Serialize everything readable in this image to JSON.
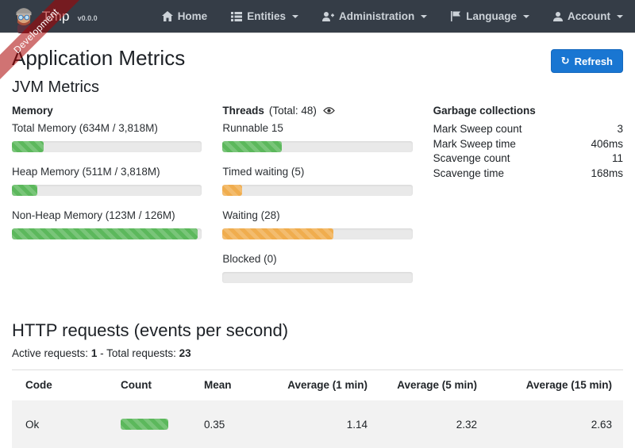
{
  "ribbon": {
    "label": "Development"
  },
  "navbar": {
    "brand": {
      "name": "Tmp",
      "version": "v0.0.0"
    },
    "items": [
      {
        "label": "Home"
      },
      {
        "label": "Entities"
      },
      {
        "label": "Administration"
      },
      {
        "label": "Language"
      },
      {
        "label": "Account"
      }
    ]
  },
  "page": {
    "title": "Application Metrics",
    "refresh_label": "Refresh",
    "refresh_icon": "↻",
    "jvm_title": "JVM Metrics"
  },
  "memory": {
    "title": "Memory",
    "bars": [
      {
        "label": "Total Memory (634M / 3,818M)",
        "percent": 16.6,
        "color": "#5cb85c"
      },
      {
        "label": "Heap Memory (511M / 3,818M)",
        "percent": 13.4,
        "color": "#5cb85c"
      },
      {
        "label": "Non-Heap Memory (123M / 126M)",
        "percent": 97.6,
        "color": "#5cb85c"
      }
    ]
  },
  "threads": {
    "title": "Threads",
    "total_label": "(Total: 48)",
    "bars": [
      {
        "label": "Runnable 15",
        "percent": 31.2,
        "color": "#5cb85c"
      },
      {
        "label": "Timed waiting (5)",
        "percent": 10.4,
        "color": "#f0ad4e"
      },
      {
        "label": "Waiting (28)",
        "percent": 58.3,
        "color": "#f0ad4e"
      },
      {
        "label": "Blocked (0)",
        "percent": 0,
        "color": "#f0ad4e"
      }
    ]
  },
  "gc": {
    "title": "Garbage collections",
    "rows": [
      {
        "label": "Mark Sweep count",
        "value": "3"
      },
      {
        "label": "Mark Sweep time",
        "value": "406ms"
      },
      {
        "label": "Scavenge count",
        "value": "11"
      },
      {
        "label": "Scavenge time",
        "value": "168ms"
      }
    ]
  },
  "http": {
    "title": "HTTP requests (events per second)",
    "active_label": "Active requests:",
    "active_value": "1",
    "total_label": "- Total requests:",
    "total_value": "23",
    "table": {
      "headers": [
        "Code",
        "Count",
        "Mean",
        "Average (1 min)",
        "Average (5 min)",
        "Average (15 min)"
      ],
      "rows": [
        {
          "code": "Ok",
          "count_percent": 100,
          "count_color": "#5cb85c",
          "mean": "0.35",
          "avg1": "1.14",
          "avg5": "2.32",
          "avg15": "2.63"
        }
      ]
    }
  },
  "colors": {
    "navbar_bg": "#353d47",
    "primary": "#1976d2",
    "success": "#5cb85c",
    "warning": "#f0ad4e",
    "ribbon": "rgba(170,0,0,0.55)"
  }
}
